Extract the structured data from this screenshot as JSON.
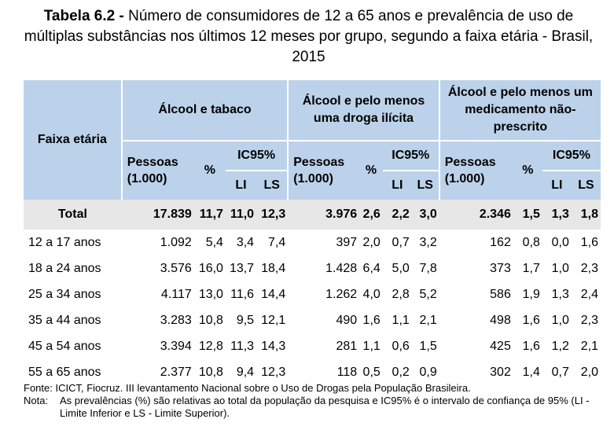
{
  "title": {
    "label": "Tabela 6.2 -",
    "text": "Número de consumidores de 12 a 65 anos e prevalência de uso de múltiplas substâncias nos últimos 12 meses por grupo, segundo a faixa etária - Brasil, 2015"
  },
  "header": {
    "row_label": "Faixa etária",
    "groups": [
      "Álcool e tabaco",
      "Álcool e pelo menos uma droga ilícita",
      "Álcool e pelo menos um medicamento não-prescrito"
    ],
    "pessoas": "Pessoas (1.000)",
    "pct": "%",
    "ic": "IC95%",
    "li": "LI",
    "ls": "LS"
  },
  "total": {
    "label": "Total",
    "values": [
      "17.839",
      "11,7",
      "11,0",
      "12,3",
      "3.976",
      "2,6",
      "2,2",
      "3,0",
      "2.346",
      "1,5",
      "1,3",
      "1,8"
    ]
  },
  "rows": [
    {
      "label": "12 a 17 anos",
      "values": [
        "1.092",
        "5,4",
        "3,4",
        "7,4",
        "397",
        "2,0",
        "0,7",
        "3,2",
        "162",
        "0,8",
        "0,0",
        "1,6"
      ]
    },
    {
      "label": "18 a 24 anos",
      "values": [
        "3.576",
        "16,0",
        "13,7",
        "18,4",
        "1.428",
        "6,4",
        "5,0",
        "7,8",
        "373",
        "1,7",
        "1,0",
        "2,3"
      ]
    },
    {
      "label": "25 a 34 anos",
      "values": [
        "4.117",
        "13,0",
        "11,6",
        "14,4",
        "1.262",
        "4,0",
        "2,8",
        "5,2",
        "586",
        "1,9",
        "1,3",
        "2,4"
      ]
    },
    {
      "label": "35 a 44 anos",
      "values": [
        "3.283",
        "10,8",
        "9,5",
        "12,1",
        "490",
        "1,6",
        "1,1",
        "2,1",
        "498",
        "1,6",
        "1,0",
        "2,3"
      ]
    },
    {
      "label": "45 a 54 anos",
      "values": [
        "3.394",
        "12,8",
        "11,3",
        "14,3",
        "281",
        "1,1",
        "0,6",
        "1,5",
        "425",
        "1,6",
        "1,2",
        "2,1"
      ]
    },
    {
      "label": "55 a 65 anos",
      "values": [
        "2.377",
        "10,8",
        "9,4",
        "12,3",
        "118",
        "0,5",
        "0,2",
        "0,9",
        "302",
        "1,4",
        "0,7",
        "2,0"
      ]
    }
  ],
  "notes": {
    "fonte": "Fonte: ICICT, Fiocruz. III levantamento Nacional sobre o Uso de Drogas pela População Brasileira.",
    "nota_label": "Nota:",
    "nota_text": "As prevalências (%) são relativas ao total da população da pesquisa e IC95% é o intervalo de confiança de 95% (LI - Limite Inferior e LS - Limite Superior)."
  }
}
